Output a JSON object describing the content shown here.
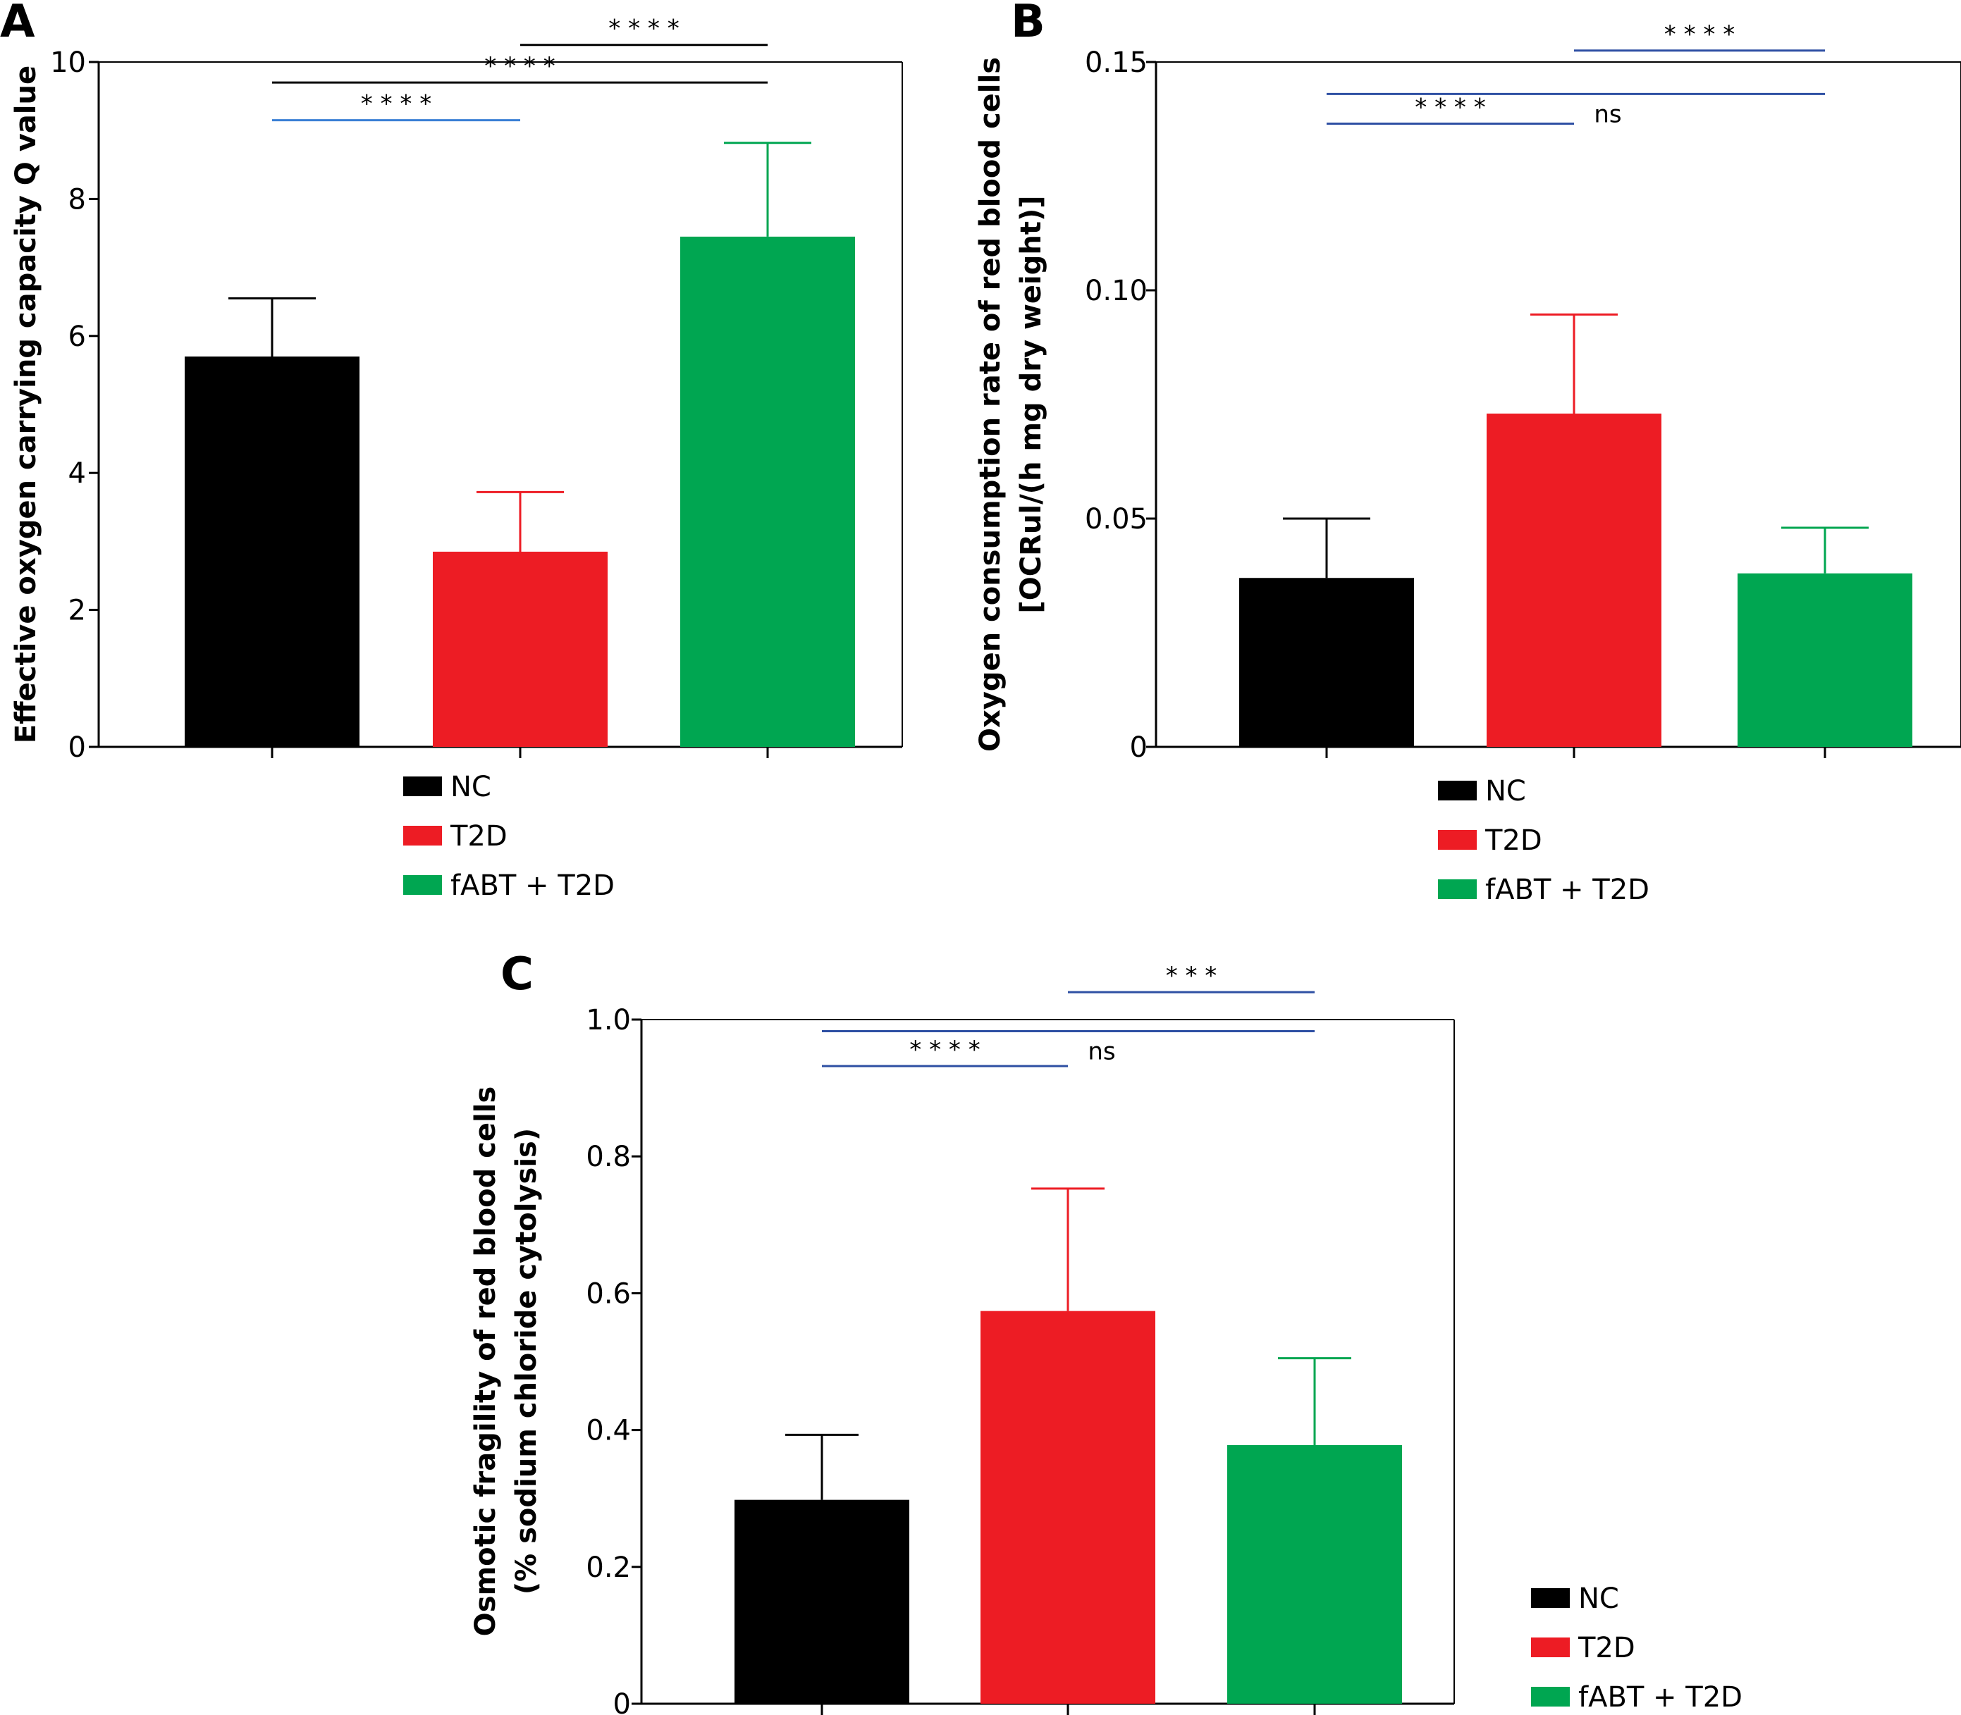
{
  "chart_data": [
    {
      "panel": "A",
      "type": "bar",
      "title": "",
      "xlabel": "",
      "ylabel": "Effective oxygen carrying capacity Q value",
      "ylabel_lines": [
        "Effective oxygen carrying capacity Q value"
      ],
      "ylim": [
        0,
        10
      ],
      "yticks": [
        0,
        2,
        4,
        6,
        8,
        10
      ],
      "ytick_labels": [
        "0",
        "2",
        "4",
        "6",
        "8",
        "10"
      ],
      "categories": [
        "NC",
        "T2D",
        "fABT + T2D"
      ],
      "values": [
        5.7,
        2.85,
        7.45
      ],
      "error_upper": [
        6.55,
        3.72,
        8.82
      ],
      "colors": [
        "#000000",
        "#ed1c24",
        "#00a651"
      ],
      "legend": {
        "entries": [
          "NC",
          "T2D",
          "fABT + T2D"
        ],
        "placement": "bottom"
      },
      "grid": false,
      "significance": [
        {
          "from": 0,
          "to": 1,
          "label": "* * * *",
          "level": 9.15,
          "color": "#3a7fd5"
        },
        {
          "from": 0,
          "to": 2,
          "label": "* * * *",
          "level": 9.7,
          "color": "#000000"
        },
        {
          "from": 1,
          "to": 2,
          "label": "* * * *",
          "level": 10.25,
          "color": "#000000"
        }
      ]
    },
    {
      "panel": "B",
      "type": "bar",
      "title": "",
      "xlabel": "",
      "ylabel": "Oxygen consumption rate of red blood cells [OCRul/(h mg dry weight)]",
      "ylabel_lines": [
        "Oxygen consumption rate of red blood cells",
        "[OCRul/(h mg dry weight)]"
      ],
      "ylim": [
        0,
        0.15
      ],
      "yticks": [
        0,
        0.05,
        0.1,
        0.15
      ],
      "ytick_labels": [
        "0",
        "0.05",
        "0.10",
        "0.15"
      ],
      "categories": [
        "NC",
        "T2D",
        "fABT + T2D"
      ],
      "values": [
        0.037,
        0.073,
        0.038
      ],
      "error_upper": [
        0.05,
        0.0947,
        0.048
      ],
      "colors": [
        "#000000",
        "#ed1c24",
        "#00a651"
      ],
      "legend": {
        "entries": [
          "NC",
          "T2D",
          "fABT + T2D"
        ],
        "placement": "bottom"
      },
      "grid": false,
      "significance": [
        {
          "from": 0,
          "to": 1,
          "label": "* * * *",
          "level": 0.1365,
          "color": "#2e4fa3"
        },
        {
          "from": 0,
          "to": 2,
          "label": "ns",
          "level": 0.143,
          "color": "#2e4fa3",
          "label_below": true
        },
        {
          "from": 1,
          "to": 2,
          "label": "* * * *",
          "level": 0.1525,
          "color": "#2e4fa3"
        }
      ]
    },
    {
      "panel": "C",
      "type": "bar",
      "title": "",
      "xlabel": "",
      "ylabel": "Osmotic fragility of red blood cells (% sodium chloride cytolysis)",
      "ylabel_lines": [
        "Osmotic fragility of red blood cells",
        "(% sodium chloride cytolysis)"
      ],
      "ylim": [
        0,
        1.0
      ],
      "yticks": [
        0,
        0.2,
        0.4,
        0.6,
        0.8,
        1.0
      ],
      "ytick_labels": [
        "0",
        "0.2",
        "0.4",
        "0.6",
        "0.8",
        "1.0"
      ],
      "categories": [
        "NC",
        "T2D",
        "fABT + T2D"
      ],
      "values": [
        0.298,
        0.574,
        0.378
      ],
      "error_upper": [
        0.393,
        0.753,
        0.505
      ],
      "colors": [
        "#000000",
        "#ed1c24",
        "#00a651"
      ],
      "legend": {
        "entries": [
          "NC",
          "T2D",
          "fABT + T2D"
        ],
        "placement": "right-bottom"
      },
      "grid": false,
      "significance": [
        {
          "from": 0,
          "to": 1,
          "label": "* * * *",
          "level": 0.932,
          "color": "#2e4fa3"
        },
        {
          "from": 0,
          "to": 2,
          "label": "ns",
          "level": 0.983,
          "color": "#2e4fa3",
          "label_below": true
        },
        {
          "from": 1,
          "to": 2,
          "label": "* * *",
          "level": 1.04,
          "color": "#2e4fa3"
        }
      ]
    }
  ]
}
